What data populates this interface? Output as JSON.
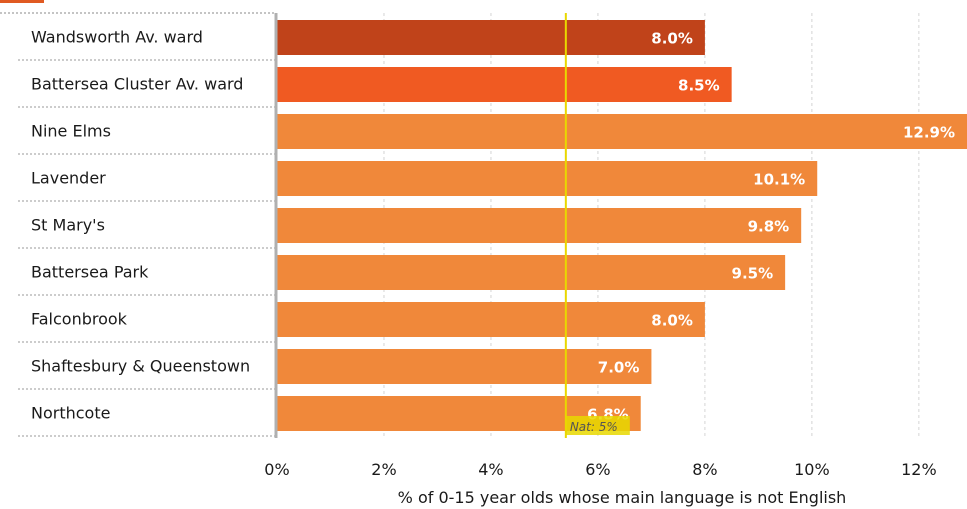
{
  "chart_data": {
    "type": "bar",
    "orientation": "horizontal",
    "categories": [
      "Wandsworth Av. ward",
      "Battersea Cluster Av. ward",
      "Nine Elms",
      "Lavender",
      "St Mary's",
      "Battersea Park",
      "Falconbrook",
      "Shaftesbury & Queenstown",
      "Northcote"
    ],
    "values": [
      8.0,
      8.5,
      12.9,
      10.1,
      9.8,
      9.5,
      8.0,
      7.0,
      6.8
    ],
    "value_labels": [
      "8.0%",
      "8.5%",
      "12.9%",
      "10.1%",
      "9.8%",
      "9.5%",
      "8.0%",
      "7.0%",
      "6.8%"
    ],
    "bar_colors": [
      "#c0431a",
      "#f05a22",
      "#f0883a",
      "#f0883a",
      "#f0883a",
      "#f0883a",
      "#f0883a",
      "#f0883a",
      "#f0883a"
    ],
    "xlabel": "% of 0-15 year olds whose main language is not English",
    "xlim": [
      0,
      12.9
    ],
    "xticks": [
      0,
      2,
      4,
      6,
      8,
      10,
      12
    ],
    "xtick_labels": [
      "0%",
      "2%",
      "4%",
      "6%",
      "8%",
      "10%",
      "12%"
    ],
    "grid": "vertical dashed",
    "reference_line": {
      "value": 5.4,
      "label": "Nat: 5%",
      "color": "#e8d800"
    }
  }
}
